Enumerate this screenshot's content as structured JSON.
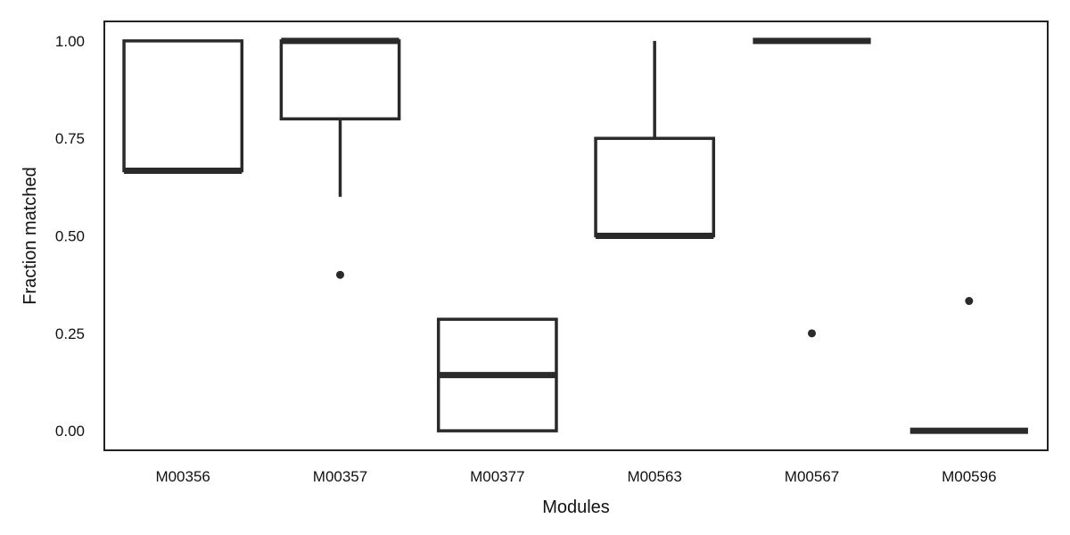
{
  "chart_data": {
    "type": "box",
    "title": "",
    "xlabel": "Modules",
    "ylabel": "Fraction matched",
    "ylim": [
      -0.05,
      1.05
    ],
    "yticks": [
      0.0,
      0.25,
      0.5,
      0.75,
      1.0
    ],
    "ytick_labels": [
      "0.00",
      "0.25",
      "0.50",
      "0.75",
      "1.00"
    ],
    "grid": false,
    "colors": {
      "stroke": "#2a2a2a",
      "frame": "#222222",
      "background": "#ffffff"
    },
    "categories": [
      "M00356",
      "M00357",
      "M00377",
      "M00563",
      "M00567",
      "M00596"
    ],
    "boxes": [
      {
        "category": "M00356",
        "whisker_low": 0.667,
        "q1": 0.667,
        "median": 0.667,
        "q3": 1.0,
        "whisker_high": 1.0,
        "outliers": []
      },
      {
        "category": "M00357",
        "whisker_low": 0.6,
        "q1": 0.8,
        "median": 1.0,
        "q3": 1.0,
        "whisker_high": 1.0,
        "outliers": [
          0.4
        ]
      },
      {
        "category": "M00377",
        "whisker_low": 0.0,
        "q1": 0.0,
        "median": 0.143,
        "q3": 0.286,
        "whisker_high": 0.286,
        "outliers": []
      },
      {
        "category": "M00563",
        "whisker_low": 0.5,
        "q1": 0.5,
        "median": 0.5,
        "q3": 0.75,
        "whisker_high": 1.0,
        "outliers": []
      },
      {
        "category": "M00567",
        "whisker_low": 1.0,
        "q1": 1.0,
        "median": 1.0,
        "q3": 1.0,
        "whisker_high": 1.0,
        "outliers": [
          0.25
        ]
      },
      {
        "category": "M00596",
        "whisker_low": 0.0,
        "q1": 0.0,
        "median": 0.0,
        "q3": 0.0,
        "whisker_high": 0.0,
        "outliers": [
          0.333
        ]
      }
    ]
  }
}
